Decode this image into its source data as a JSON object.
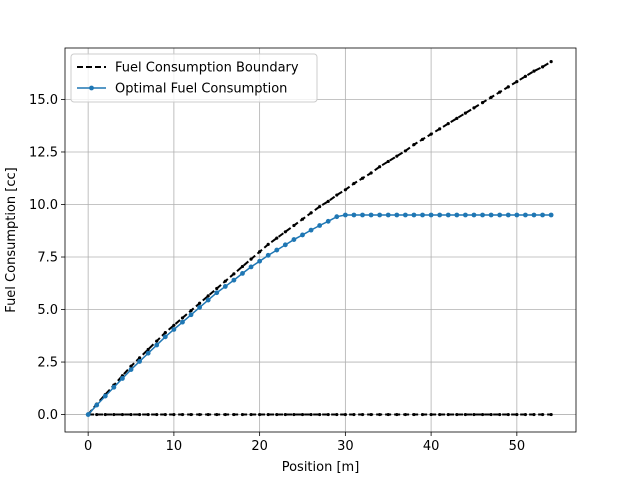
{
  "chart_data": {
    "type": "line",
    "xlabel": "Position [m]",
    "ylabel": "Fuel Consumption [cc]",
    "xlim": [
      -2.7,
      56.9
    ],
    "ylim": [
      -0.83,
      17.45
    ],
    "xticks": [
      0,
      10,
      20,
      30,
      40,
      50
    ],
    "xtick_labels": [
      "0",
      "10",
      "20",
      "30",
      "40",
      "50"
    ],
    "yticks": [
      0,
      2.5,
      5,
      7.5,
      10,
      12.5,
      15
    ],
    "ytick_labels": [
      "0.0",
      "2.5",
      "5.0",
      "7.5",
      "10.0",
      "12.5",
      "15.0"
    ],
    "grid": true,
    "legend_position": "upper-left",
    "x": [
      0,
      1,
      2,
      3,
      4,
      5,
      6,
      7,
      8,
      9,
      10,
      11,
      12,
      13,
      14,
      15,
      16,
      17,
      18,
      19,
      20,
      21,
      22,
      23,
      24,
      25,
      26,
      27,
      28,
      29,
      30,
      31,
      32,
      33,
      34,
      35,
      36,
      37,
      38,
      39,
      40,
      41,
      42,
      43,
      44,
      45,
      46,
      47,
      48,
      49,
      50,
      51,
      52,
      53,
      54
    ],
    "series": [
      {
        "name": "Fuel Consumption Boundary",
        "color": "#000000",
        "style": "dashed",
        "values_upper": [
          0,
          0.5,
          0.95,
          1.4,
          1.85,
          2.3,
          2.7,
          3.1,
          3.5,
          3.9,
          4.25,
          4.6,
          4.95,
          5.3,
          5.65,
          6.0,
          6.35,
          6.7,
          7.05,
          7.4,
          7.75,
          8.1,
          8.4,
          8.7,
          9.0,
          9.3,
          9.6,
          9.9,
          10.15,
          10.45,
          10.7,
          11.0,
          11.25,
          11.5,
          11.8,
          12.05,
          12.3,
          12.55,
          12.85,
          13.1,
          13.35,
          13.6,
          13.85,
          14.1,
          14.35,
          14.6,
          14.85,
          15.1,
          15.35,
          15.6,
          15.85,
          16.1,
          16.35,
          16.55,
          16.8
        ],
        "values_lower": [
          0,
          0,
          0,
          0,
          0,
          0,
          0,
          0,
          0,
          0,
          0,
          0,
          0,
          0,
          0,
          0,
          0,
          0,
          0,
          0,
          0,
          0,
          0,
          0,
          0,
          0,
          0,
          0,
          0,
          0,
          0,
          0,
          0,
          0,
          0,
          0,
          0,
          0,
          0,
          0,
          0,
          0,
          0,
          0,
          0,
          0,
          0,
          0,
          0,
          0,
          0,
          0,
          0,
          0,
          0
        ]
      },
      {
        "name": "Optimal Fuel Consumption",
        "color": "#1f77b4",
        "style": "solid",
        "values": [
          0,
          0.45,
          0.88,
          1.3,
          1.72,
          2.14,
          2.53,
          2.92,
          3.31,
          3.7,
          4.05,
          4.4,
          4.75,
          5.1,
          5.45,
          5.8,
          6.1,
          6.4,
          6.72,
          7.03,
          7.3,
          7.58,
          7.83,
          8.08,
          8.33,
          8.55,
          8.78,
          9.0,
          9.2,
          9.42,
          9.5,
          9.5,
          9.5,
          9.5,
          9.5,
          9.5,
          9.5,
          9.5,
          9.5,
          9.5,
          9.5,
          9.5,
          9.5,
          9.5,
          9.5,
          9.5,
          9.5,
          9.5,
          9.5,
          9.5,
          9.5,
          9.5,
          9.5,
          9.5,
          9.5
        ]
      }
    ]
  }
}
